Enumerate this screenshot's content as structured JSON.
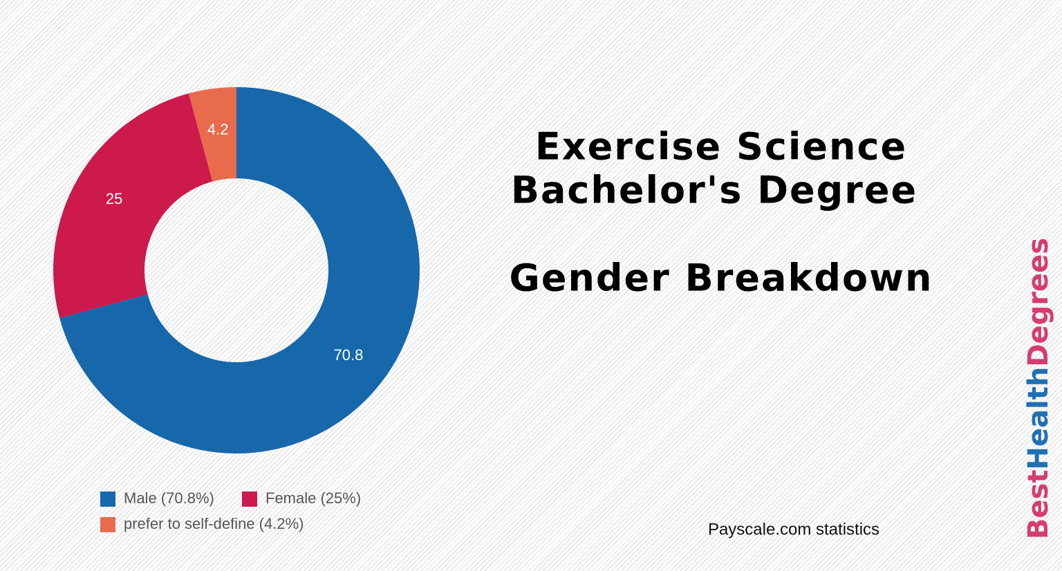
{
  "chart_data": {
    "type": "pie",
    "donut": true,
    "title": [
      "Exercise Science",
      "Bachelor's Degree"
    ],
    "subtitle": "Gender Breakdown",
    "categories": [
      "Male (70.8%)",
      "Female (25%)",
      "prefer to self-define (4.2%)"
    ],
    "values": [
      70.8,
      25,
      4.2
    ],
    "colors": [
      "#1767ab",
      "#cc1a4d",
      "#e86b4d"
    ],
    "source": "Payscale.com  statistics"
  },
  "brand": [
    {
      "text": "Best",
      "color": "#d63c6e"
    },
    {
      "text": "Health",
      "color": "#1f6fb3"
    },
    {
      "text": "Degrees",
      "color": "#d63c6e"
    }
  ]
}
